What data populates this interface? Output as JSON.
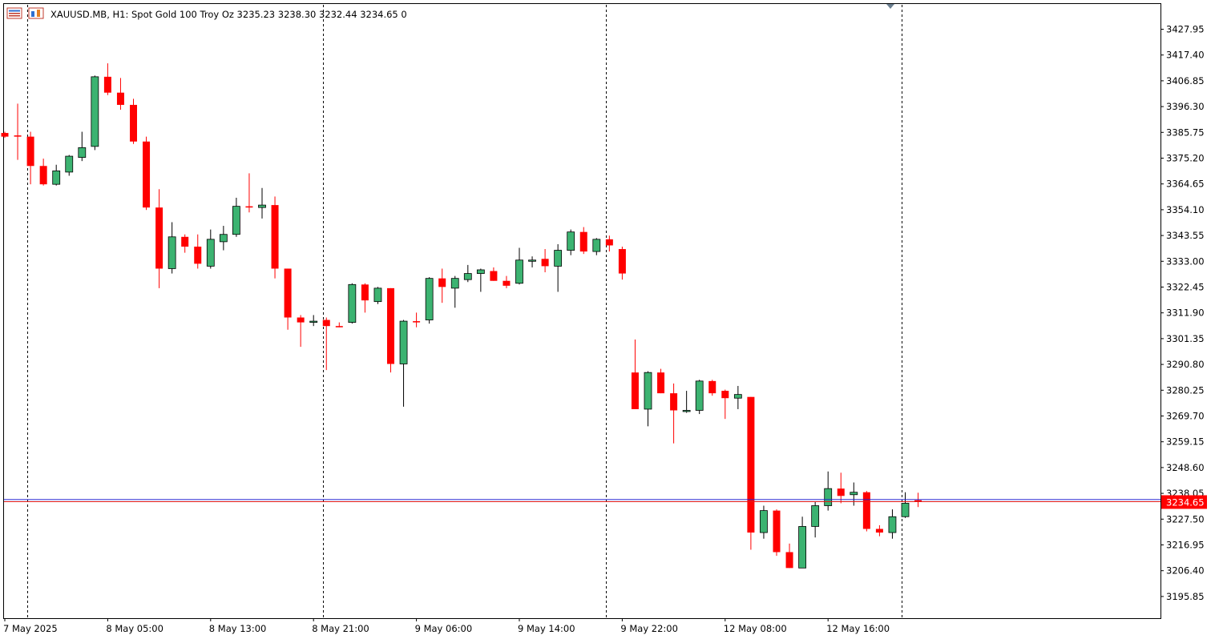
{
  "header": {
    "symbol_info": "XAUUSD.MB, H1:  Spot Gold 100 Troy Oz  3235.23 3238.30 3232.44 3234.65  0",
    "icon_a": "window-list-icon",
    "icon_b": "chart-bars-icon"
  },
  "colors": {
    "bull": "#3CB371",
    "bear": "#FF0000",
    "bid_line": "#1E1ED2",
    "ask_line": "#E01818",
    "price_tag_bg": "#FF0000",
    "ask_tag_bg": "#0000FF"
  },
  "chart_data": {
    "type": "candlestick",
    "symbol": "XAUUSD.MB",
    "timeframe": "H1",
    "ylim": [
      3190,
      3435
    ],
    "y_ticks": [
      3427.95,
      3417.4,
      3406.85,
      3396.3,
      3385.75,
      3375.2,
      3364.65,
      3354.1,
      3343.55,
      3333.0,
      3322.45,
      3311.9,
      3301.35,
      3290.8,
      3280.25,
      3269.7,
      3259.15,
      3248.6,
      3238.05,
      3227.5,
      3216.95,
      3206.4,
      3195.85
    ],
    "y_tick_labels": [
      "3427.95",
      "3417.40",
      "3406.85",
      "3396.30",
      "3385.75",
      "3375.20",
      "3364.65",
      "3354.10",
      "3343.55",
      "3333.00",
      "3322.45",
      "3311.90",
      "3301.35",
      "3290.80",
      "3280.25",
      "3269.70",
      "3259.15",
      "3248.60",
      "3238.05",
      "3227.50",
      "3216.95",
      "3206.40",
      "3195.85"
    ],
    "x_labels": [
      {
        "text": "7 May 2025",
        "bar": -4
      },
      {
        "text": "8 May 05:00",
        "bar": 4
      },
      {
        "text": "8 May 13:00",
        "bar": 12
      },
      {
        "text": "8 May 21:00",
        "bar": 20
      },
      {
        "text": "9 May 06:00",
        "bar": 28
      },
      {
        "text": "9 May 14:00",
        "bar": 36
      },
      {
        "text": "9 May 22:00",
        "bar": 44
      },
      {
        "text": "12 May 08:00",
        "bar": 52
      },
      {
        "text": "12 May 16:00",
        "bar": 60
      }
    ],
    "period_separators": [
      -2,
      21,
      43,
      66
    ],
    "current_price": 3234.65,
    "current_price_label": "3234.65",
    "ask_price": 3235.5,
    "ohlc": [
      [
        3385.5,
        3386.0,
        3383.5,
        3384.0
      ],
      [
        3384.5,
        3397.5,
        3374.5,
        3384.0
      ],
      [
        3384.0,
        3386.0,
        3364.5,
        3372.0
      ],
      [
        3372.0,
        3375.0,
        3364.0,
        3364.5
      ],
      [
        3364.5,
        3372.5,
        3364.0,
        3370.0
      ],
      [
        3369.5,
        3376.5,
        3368.0,
        3376.0
      ],
      [
        3375.5,
        3386.0,
        3374.0,
        3379.5
      ],
      [
        3380.0,
        3409.0,
        3378.5,
        3408.5
      ],
      [
        3408.5,
        3414.0,
        3401.0,
        3402.0
      ],
      [
        3402.0,
        3408.0,
        3395.0,
        3397.0
      ],
      [
        3397.0,
        3399.5,
        3381.0,
        3382.0
      ],
      [
        3382.0,
        3384.0,
        3354.0,
        3355.0
      ],
      [
        3355.0,
        3362.5,
        3322.0,
        3330.0
      ],
      [
        3330.0,
        3349.0,
        3328.0,
        3343.0
      ],
      [
        3343.0,
        3344.0,
        3336.5,
        3339.0
      ],
      [
        3339.0,
        3344.0,
        3330.0,
        3332.0
      ],
      [
        3331.0,
        3346.0,
        3330.0,
        3342.0
      ],
      [
        3341.0,
        3347.5,
        3337.5,
        3344.0
      ],
      [
        3344.0,
        3359.0,
        3343.0,
        3355.5
      ],
      [
        3355.5,
        3369.0,
        3353.0,
        3355.0
      ],
      [
        3355.0,
        3363.0,
        3350.5,
        3356.0
      ],
      [
        3356.0,
        3359.5,
        3326.0,
        3330.0
      ],
      [
        3330.0,
        3330.0,
        3305.0,
        3310.0
      ],
      [
        3310.0,
        3311.0,
        3298.0,
        3308.0
      ],
      [
        3308.0,
        3311.0,
        3306.5,
        3308.5
      ],
      [
        3309.0,
        3310.0,
        3288.5,
        3306.5
      ],
      [
        3306.5,
        3308.0,
        3306.0,
        3306.0
      ],
      [
        3308.0,
        3324.0,
        3307.5,
        3323.5
      ],
      [
        3323.5,
        3324.0,
        3312.0,
        3317.0
      ],
      [
        3316.5,
        3322.5,
        3315.5,
        3322.0
      ],
      [
        3322.0,
        3322.0,
        3287.5,
        3291.0
      ],
      [
        3291.0,
        3309.0,
        3273.5,
        3308.5
      ],
      [
        3308.5,
        3312.0,
        3306.0,
        3308.0
      ],
      [
        3309.0,
        3326.5,
        3307.5,
        3326.0
      ],
      [
        3326.0,
        3330.0,
        3316.0,
        3322.5
      ],
      [
        3322.0,
        3327.0,
        3314.0,
        3326.0
      ],
      [
        3325.5,
        3331.5,
        3324.5,
        3328.0
      ],
      [
        3328.0,
        3330.0,
        3320.5,
        3329.5
      ],
      [
        3329.0,
        3330.5,
        3325.0,
        3325.0
      ],
      [
        3325.0,
        3327.0,
        3322.0,
        3323.0
      ],
      [
        3324.0,
        3338.5,
        3323.5,
        3333.5
      ],
      [
        3333.0,
        3335.0,
        3330.5,
        3333.5
      ],
      [
        3334.0,
        3338.0,
        3328.5,
        3331.0
      ],
      [
        3331.0,
        3340.0,
        3320.5,
        3337.5
      ],
      [
        3337.5,
        3346.0,
        3335.5,
        3345.0
      ],
      [
        3345.0,
        3347.0,
        3336.0,
        3337.0
      ],
      [
        3337.0,
        3342.5,
        3335.5,
        3342.0
      ],
      [
        3342.0,
        3343.5,
        3337.0,
        3339.5
      ],
      [
        3338.0,
        3339.0,
        3325.5,
        3328.0
      ],
      [
        3287.5,
        3301.0,
        3273.0,
        3272.5
      ],
      [
        3272.5,
        3288.0,
        3265.5,
        3287.5
      ],
      [
        3287.5,
        3289.0,
        3279.0,
        3279.0
      ],
      [
        3279.0,
        3283.0,
        3258.5,
        3272.0
      ],
      [
        3272.0,
        3280.0,
        3271.0,
        3272.0
      ],
      [
        3272.0,
        3284.5,
        3270.5,
        3284.0
      ],
      [
        3284.0,
        3284.5,
        3278.0,
        3279.0
      ],
      [
        3280.0,
        3280.5,
        3268.5,
        3277.0
      ],
      [
        3277.0,
        3282.0,
        3272.5,
        3278.5
      ],
      [
        3277.5,
        3277.5,
        3215.0,
        3222.0
      ],
      [
        3222.0,
        3233.0,
        3219.5,
        3231.0
      ],
      [
        3231.0,
        3231.5,
        3212.5,
        3214.0
      ],
      [
        3214.0,
        3217.5,
        3207.5,
        3207.5
      ],
      [
        3207.5,
        3228.5,
        3207.5,
        3224.5
      ],
      [
        3224.5,
        3234.5,
        3220.0,
        3233.0
      ],
      [
        3233.0,
        3247.0,
        3231.0,
        3240.0
      ],
      [
        3240.0,
        3246.5,
        3234.0,
        3237.0
      ],
      [
        3237.5,
        3242.5,
        3233.0,
        3238.5
      ],
      [
        3238.5,
        3239.0,
        3222.5,
        3223.5
      ],
      [
        3223.5,
        3225.0,
        3220.5,
        3222.0
      ],
      [
        3222.0,
        3231.5,
        3219.5,
        3228.5
      ],
      [
        3228.5,
        3238.5,
        3228.0,
        3234.0
      ],
      [
        3235.23,
        3238.3,
        3232.44,
        3234.65
      ]
    ]
  }
}
